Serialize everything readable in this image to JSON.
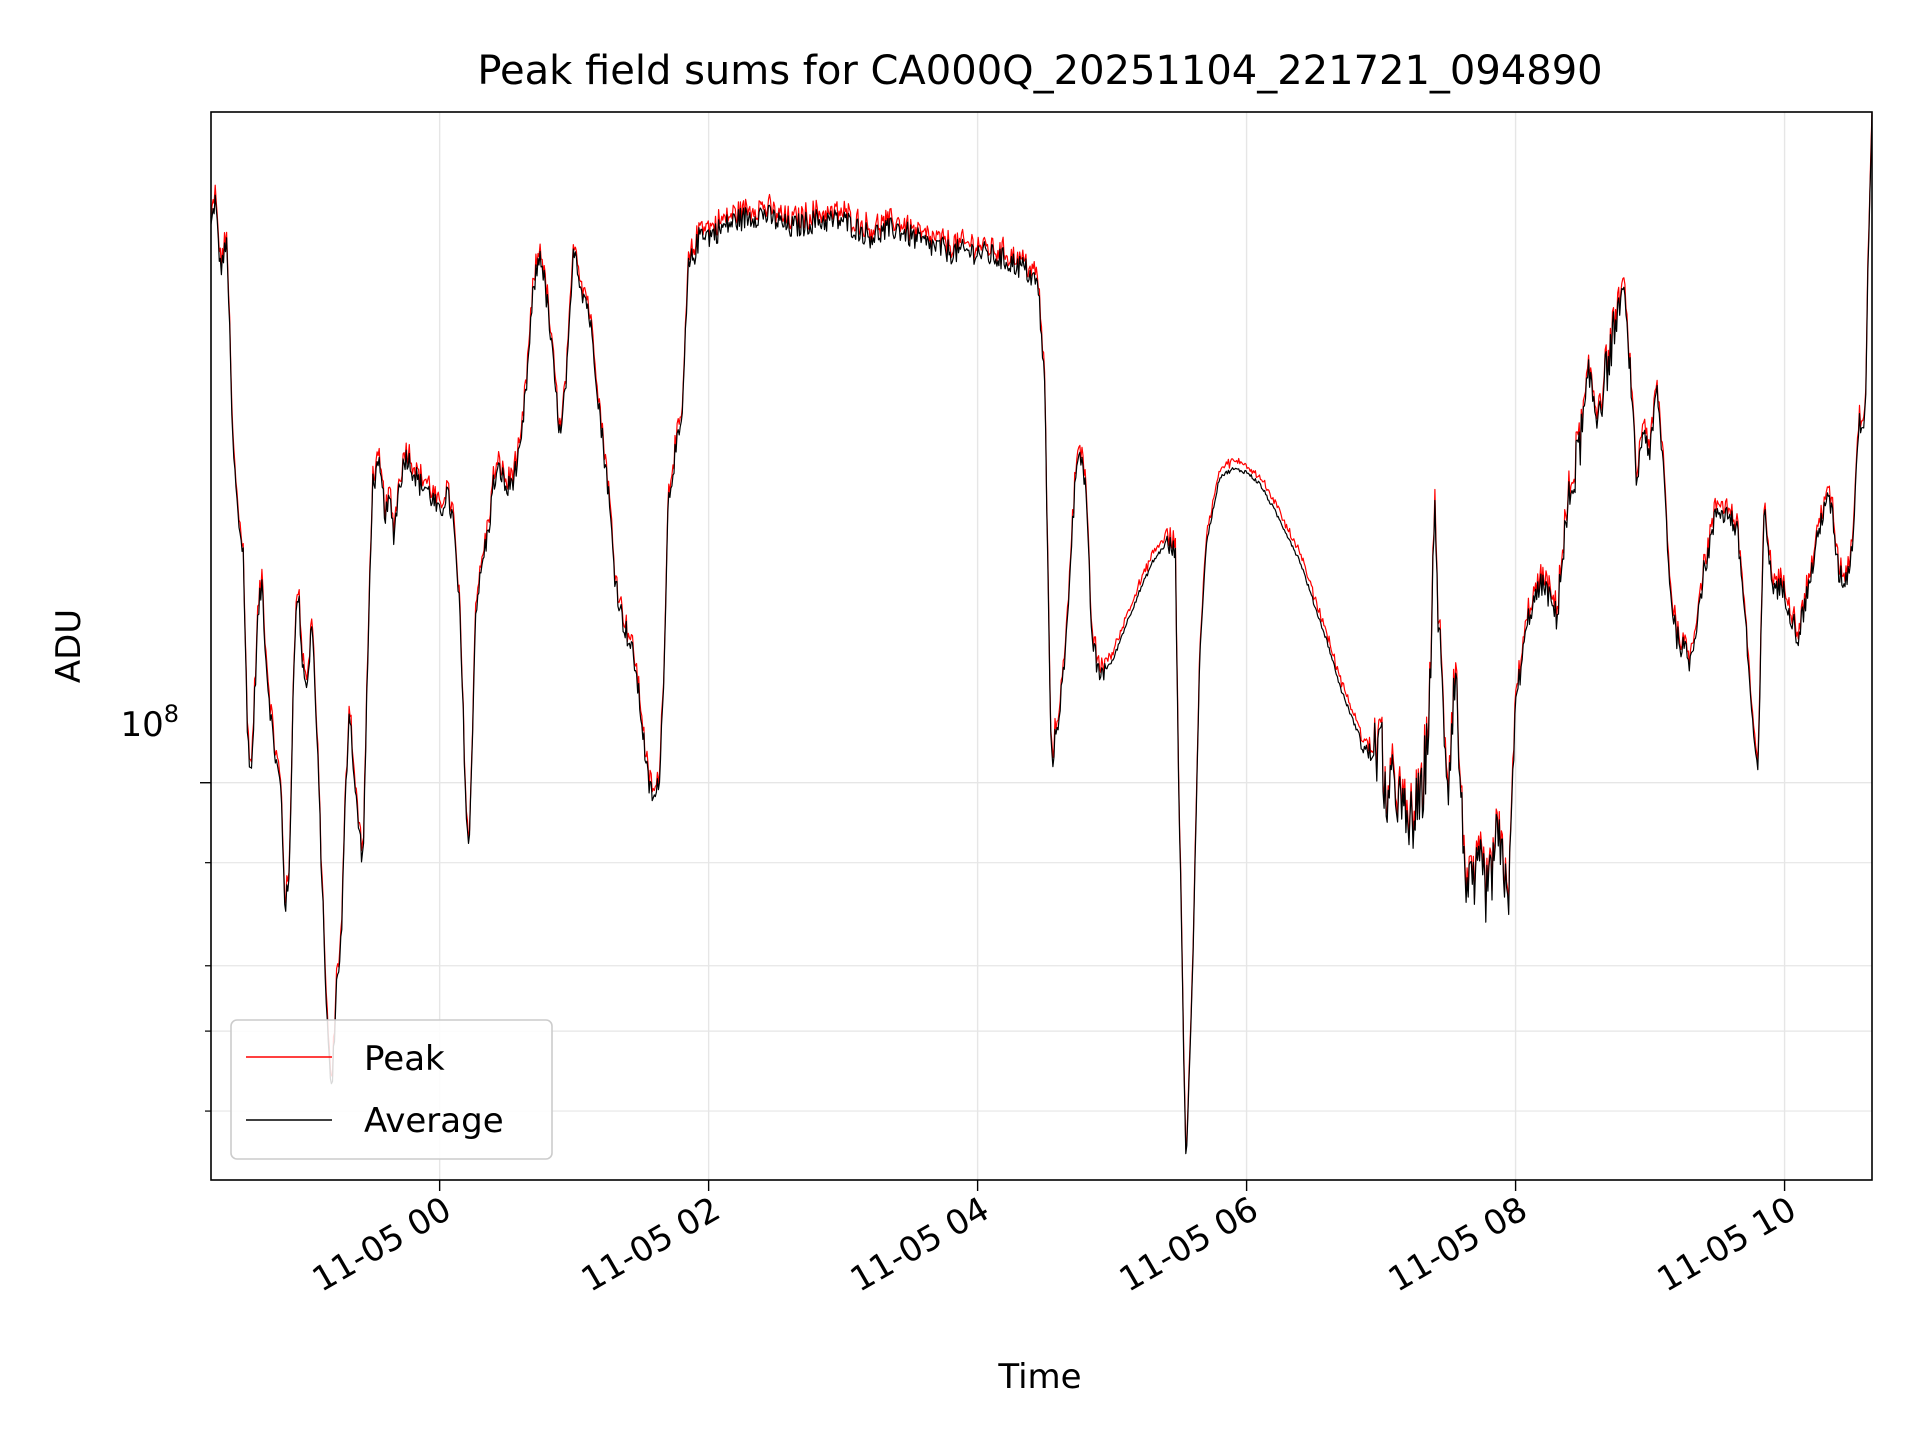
{
  "chart_data": {
    "type": "line",
    "title": "Peak field sums for CA000Q_20251104_221721_094890",
    "xlabel": "Time",
    "ylabel": "ADU",
    "yscale": "log",
    "ylim": [
      33000000,
      650000000
    ],
    "xlim_hours": [
      -1.7,
      10.65
    ],
    "y_tick_label": {
      "base": "10",
      "exp": "8",
      "value": 100000000
    },
    "y_minor_ticks": [
      40000000,
      50000000,
      60000000,
      80000000
    ],
    "x_ticks": [
      {
        "h": 0,
        "label": "11-05 00"
      },
      {
        "h": 2,
        "label": "11-05 02"
      },
      {
        "h": 4,
        "label": "11-05 04"
      },
      {
        "h": 6,
        "label": "11-05 06"
      },
      {
        "h": 8,
        "label": "11-05 08"
      },
      {
        "h": 10,
        "label": "11-05 10"
      }
    ],
    "grid": true,
    "legend": {
      "placement": "lower-left",
      "entries": [
        "Peak",
        "Average"
      ]
    },
    "series": [
      {
        "name": "Peak",
        "color": "#ff0000",
        "ratio": 1.012
      },
      {
        "name": "Average",
        "color": "#000000"
      }
    ],
    "x": [
      -1.7,
      -1.67,
      -1.63,
      -1.58,
      -1.54,
      -1.5,
      -1.46,
      -1.43,
      -1.4,
      -1.35,
      -1.32,
      -1.29,
      -1.25,
      -1.22,
      -1.18,
      -1.15,
      -1.12,
      -1.08,
      -1.05,
      -1.02,
      -0.98,
      -0.95,
      -0.9,
      -0.87,
      -0.83,
      -0.8,
      -0.77,
      -0.73,
      -0.7,
      -0.67,
      -0.63,
      -0.6,
      -0.57,
      -0.53,
      -0.5,
      -0.45,
      -0.4,
      -0.37,
      -0.34,
      -0.3,
      -0.25,
      -0.2,
      -0.15,
      -0.1,
      -0.05,
      0.0,
      0.05,
      0.1,
      0.15,
      0.2,
      0.22,
      0.24,
      0.27,
      0.3,
      0.33,
      0.36,
      0.4,
      0.45,
      0.5,
      0.55,
      0.6,
      0.65,
      0.7,
      0.75,
      0.8,
      0.83,
      0.86,
      0.9,
      0.95,
      1.0,
      1.05,
      1.1,
      1.15,
      1.2,
      1.25,
      1.3,
      1.35,
      1.4,
      1.45,
      1.5,
      1.55,
      1.6,
      1.63,
      1.66,
      1.7,
      1.75,
      1.8,
      1.85,
      1.9,
      1.95,
      2.0,
      2.2,
      2.4,
      2.6,
      2.8,
      3.0,
      3.2,
      3.4,
      3.6,
      3.8,
      4.0,
      4.2,
      4.35,
      4.45,
      4.5,
      4.53,
      4.55,
      4.6,
      4.65,
      4.7,
      4.75,
      4.8,
      4.85,
      4.9,
      5.0,
      5.1,
      5.2,
      5.3,
      5.4,
      5.47,
      5.5,
      5.55,
      5.6,
      5.65,
      5.7,
      5.8,
      5.9,
      6.0,
      6.1,
      6.2,
      6.3,
      6.4,
      6.5,
      6.6,
      6.7,
      6.8,
      6.9,
      7.0,
      7.05,
      7.1,
      7.15,
      7.2,
      7.3,
      7.35,
      7.4,
      7.45,
      7.5,
      7.55,
      7.6,
      7.65,
      7.7,
      7.75,
      7.8,
      7.85,
      7.9,
      7.95,
      8.0,
      8.1,
      8.2,
      8.3,
      8.4,
      8.5,
      8.55,
      8.6,
      8.65,
      8.7,
      8.8,
      8.85,
      8.9,
      8.95,
      9.0,
      9.05,
      9.1,
      9.15,
      9.2,
      9.3,
      9.4,
      9.5,
      9.6,
      9.65,
      9.7,
      9.75,
      9.8,
      9.85,
      9.9,
      10.0,
      10.1,
      10.2,
      10.3,
      10.35,
      10.4,
      10.45,
      10.5,
      10.55,
      10.6,
      10.62,
      10.65
    ],
    "avg": [
      470000000,
      510000000,
      420000000,
      450000000,
      260000000,
      210000000,
      190000000,
      115000000,
      102000000,
      160000000,
      175000000,
      140000000,
      118000000,
      107000000,
      98000000,
      71000000,
      75000000,
      150000000,
      170000000,
      140000000,
      130000000,
      160000000,
      100000000,
      72000000,
      48000000,
      42000000,
      56000000,
      65000000,
      96000000,
      125000000,
      98000000,
      88000000,
      80000000,
      150000000,
      230000000,
      240000000,
      210000000,
      220000000,
      200000000,
      230000000,
      250000000,
      240000000,
      230000000,
      228000000,
      220000000,
      210000000,
      225000000,
      208000000,
      160000000,
      90000000,
      82000000,
      110000000,
      165000000,
      175000000,
      190000000,
      200000000,
      230000000,
      240000000,
      225000000,
      235000000,
      250000000,
      310000000,
      400000000,
      440000000,
      380000000,
      340000000,
      300000000,
      260000000,
      320000000,
      450000000,
      400000000,
      380000000,
      330000000,
      270000000,
      230000000,
      180000000,
      160000000,
      150000000,
      140000000,
      120000000,
      100000000,
      95000000,
      100000000,
      125000000,
      220000000,
      250000000,
      270000000,
      420000000,
      440000000,
      470000000,
      460000000,
      480000000,
      490000000,
      470000000,
      480000000,
      480000000,
      460000000,
      470000000,
      450000000,
      440000000,
      440000000,
      430000000,
      420000000,
      400000000,
      300000000,
      150000000,
      105000000,
      120000000,
      140000000,
      200000000,
      260000000,
      230000000,
      150000000,
      135000000,
      140000000,
      155000000,
      170000000,
      185000000,
      195000000,
      190000000,
      90000000,
      34000000,
      60000000,
      140000000,
      195000000,
      235000000,
      240000000,
      238000000,
      230000000,
      215000000,
      200000000,
      185000000,
      165000000,
      148000000,
      130000000,
      118000000,
      108000000,
      110000000,
      92000000,
      102000000,
      92000000,
      88000000,
      95000000,
      115000000,
      205000000,
      130000000,
      100000000,
      140000000,
      90000000,
      72000000,
      75000000,
      78000000,
      72000000,
      85000000,
      80000000,
      75000000,
      125000000,
      160000000,
      175000000,
      160000000,
      220000000,
      270000000,
      310000000,
      280000000,
      300000000,
      330000000,
      400000000,
      320000000,
      230000000,
      270000000,
      250000000,
      300000000,
      240000000,
      170000000,
      150000000,
      140000000,
      180000000,
      215000000,
      210000000,
      200000000,
      165000000,
      125000000,
      100000000,
      220000000,
      175000000,
      170000000,
      150000000,
      180000000,
      220000000,
      215000000,
      180000000,
      175000000,
      190000000,
      270000000,
      280000000,
      420000000,
      650000000,
      640000000
    ]
  }
}
